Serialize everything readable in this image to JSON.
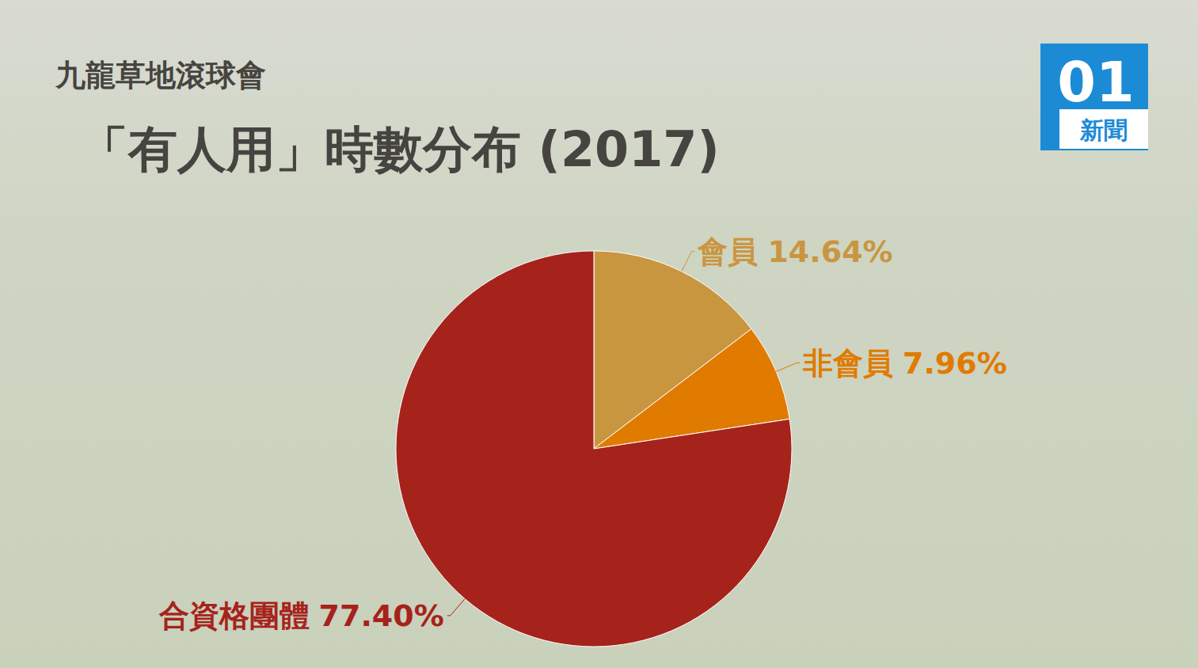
{
  "chart_data": {
    "type": "pie",
    "title": "九龍草地滾球會",
    "subtitle": "「有人用」時數分布 (2017)",
    "categories": [
      "會員",
      "非會員",
      "合資格團體"
    ],
    "values": [
      14.64,
      7.96,
      77.4
    ],
    "value_labels": [
      "14.64%",
      "7.96%",
      "77.40%"
    ],
    "colors": [
      "#c99640",
      "#e07b00",
      "#a6231c"
    ],
    "data_labels": true,
    "annotations": [
      "01",
      "新聞"
    ]
  }
}
